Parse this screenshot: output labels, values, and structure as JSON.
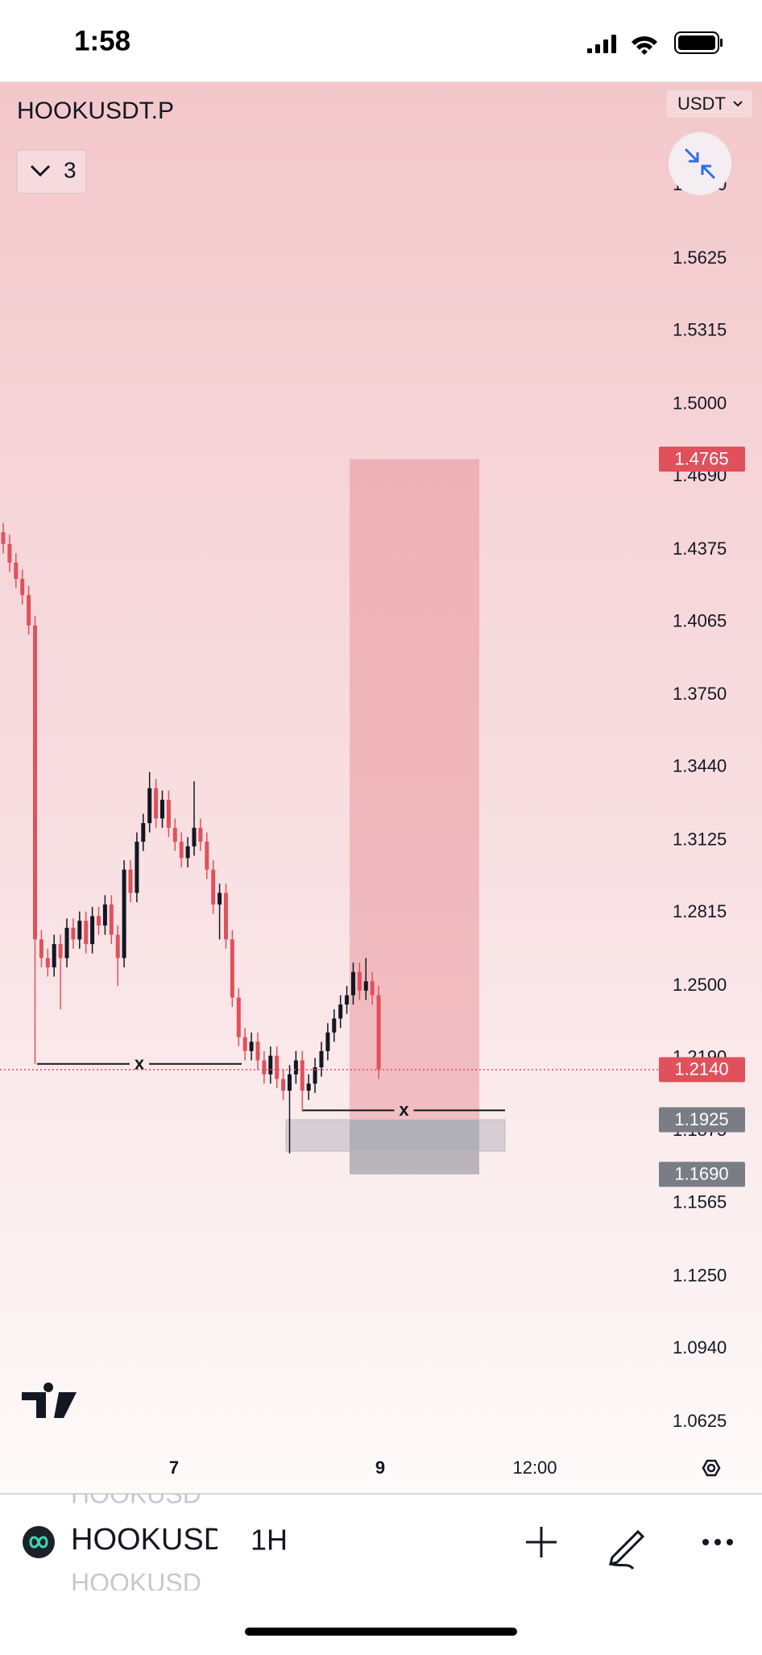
{
  "status_bar": {
    "time": "1:58"
  },
  "header": {
    "symbol": "HOOKUSDT.P",
    "indicator_count": "3",
    "currency": "USDT"
  },
  "chart_data": {
    "type": "candlestick",
    "up_color": "#131722",
    "down_color": "#e0515b",
    "ylim": [
      1.0511,
      1.6385
    ],
    "yticks": [
      {
        "value": 1.594,
        "label": "1.5940"
      },
      1.5625,
      1.5315,
      {
        "value": 1.5,
        "label": "1.5000"
      },
      {
        "value": 1.469,
        "label": "1.4690"
      },
      1.4375,
      1.4065,
      {
        "value": 1.375,
        "label": "1.3750"
      },
      {
        "value": 1.344,
        "label": "1.3440"
      },
      1.3125,
      1.2815,
      {
        "value": 1.25,
        "label": "1.2500"
      },
      {
        "value": 1.219,
        "label": "1.2190"
      },
      1.1875,
      1.1565,
      {
        "value": 1.125,
        "label": "1.1250"
      },
      {
        "value": 1.094,
        "label": "1.0940"
      },
      1.0625
    ],
    "x_axis_labels": [
      "7",
      "9",
      "12:00"
    ],
    "candles": {
      "open": [
        1.445,
        1.44,
        1.432,
        1.425,
        1.418,
        1.405,
        1.27,
        1.262,
        1.258,
        1.268,
        1.262,
        1.275,
        1.27,
        1.278,
        1.268,
        1.28,
        1.276,
        1.285,
        1.272,
        1.262,
        1.3,
        1.29,
        1.312,
        1.32,
        1.335,
        1.322,
        1.33,
        1.318,
        1.312,
        1.305,
        1.31,
        1.318,
        1.312,
        1.3,
        1.285,
        1.29,
        1.27,
        1.245,
        1.228,
        1.222,
        1.226,
        1.218,
        1.212,
        1.22,
        1.21,
        1.205,
        1.212,
        1.218,
        1.205,
        1.208,
        1.215,
        1.222,
        1.23,
        1.236,
        1.242,
        1.246,
        1.256,
        1.248,
        1.252,
        1.246
      ],
      "high": [
        1.449,
        1.444,
        1.436,
        1.429,
        1.422,
        1.409,
        1.274,
        1.266,
        1.272,
        1.272,
        1.279,
        1.279,
        1.282,
        1.282,
        1.284,
        1.284,
        1.289,
        1.289,
        1.276,
        1.304,
        1.304,
        1.316,
        1.324,
        1.342,
        1.339,
        1.334,
        1.334,
        1.322,
        1.316,
        1.314,
        1.338,
        1.322,
        1.316,
        1.304,
        1.294,
        1.294,
        1.274,
        1.249,
        1.232,
        1.23,
        1.23,
        1.222,
        1.224,
        1.224,
        1.214,
        1.216,
        1.222,
        1.222,
        1.212,
        1.219,
        1.226,
        1.234,
        1.24,
        1.246,
        1.25,
        1.26,
        1.26,
        1.262,
        1.256,
        1.25
      ],
      "low": [
        1.436,
        1.428,
        1.421,
        1.414,
        1.401,
        1.2165,
        1.258,
        1.254,
        1.254,
        1.24,
        1.258,
        1.266,
        1.266,
        1.264,
        1.264,
        1.272,
        1.272,
        1.268,
        1.25,
        1.258,
        1.286,
        1.286,
        1.308,
        1.316,
        1.318,
        1.318,
        1.314,
        1.308,
        1.301,
        1.301,
        1.306,
        1.308,
        1.296,
        1.281,
        1.27,
        1.266,
        1.241,
        1.224,
        1.218,
        1.218,
        1.214,
        1.208,
        1.208,
        1.206,
        1.201,
        1.178,
        1.208,
        1.196,
        1.201,
        1.204,
        1.211,
        1.218,
        1.226,
        1.232,
        1.238,
        1.242,
        1.244,
        1.244,
        1.242,
        1.21
      ],
      "close": [
        1.44,
        1.432,
        1.425,
        1.418,
        1.405,
        1.27,
        1.262,
        1.258,
        1.268,
        1.262,
        1.275,
        1.27,
        1.278,
        1.268,
        1.28,
        1.276,
        1.285,
        1.272,
        1.262,
        1.3,
        1.29,
        1.312,
        1.32,
        1.335,
        1.322,
        1.33,
        1.318,
        1.312,
        1.305,
        1.31,
        1.318,
        1.312,
        1.3,
        1.285,
        1.29,
        1.27,
        1.245,
        1.228,
        1.222,
        1.226,
        1.218,
        1.212,
        1.22,
        1.21,
        1.205,
        1.212,
        1.218,
        1.205,
        1.208,
        1.215,
        1.222,
        1.23,
        1.236,
        1.242,
        1.246,
        1.256,
        1.248,
        1.252,
        1.246,
        1.214
      ]
    },
    "price_tags": [
      1.4765,
      {
        "value": 1.214,
        "label": "1.2140"
      },
      1.1925,
      {
        "value": 1.169,
        "label": "1.1690"
      }
    ],
    "price_tag_colors": [
      "#e0515b",
      "#e0515b",
      "#7a7d85",
      "#7a7d85"
    ],
    "levels": [
      1.2165,
      1.1965
    ],
    "level_marker": "x",
    "zone_low": 1.179
  },
  "bottom_bar": {
    "previous_symbol": "HOOKUSD",
    "symbol": "HOOKUSD",
    "next_symbol": "HOOKUSD",
    "interval": "1H"
  }
}
